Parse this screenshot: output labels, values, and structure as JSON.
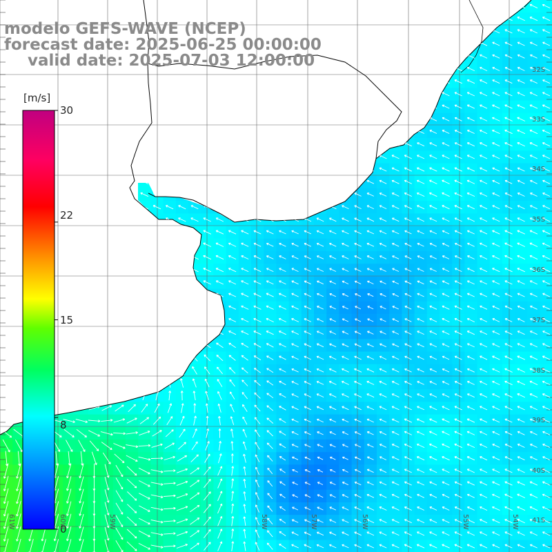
{
  "title": {
    "line1": "modelo GEFS-WAVE (NCEP)",
    "line2": "forecast date: 2025-06-25 00:00:00",
    "line3": "valid date: 2025-07-03 12:00:00"
  },
  "colorbar": {
    "unit": "[m/s]",
    "ticks": [
      "30",
      "22",
      "15",
      "8",
      "0"
    ],
    "tick_values": [
      30,
      22,
      15,
      8,
      0
    ],
    "range": [
      0,
      30
    ],
    "colors": [
      "#0000ff",
      "#00a0ff",
      "#00ffff",
      "#00ff40",
      "#a0ff00",
      "#ffff00",
      "#ff8000",
      "#ff0000",
      "#ff0080",
      "#c00080"
    ]
  },
  "lat_labels": [
    "32S",
    "33S",
    "34S",
    "35S",
    "36S",
    "37S",
    "38S",
    "39S",
    "40S",
    "41S"
  ],
  "lon_labels": [
    "61W",
    "60W",
    "59W",
    "58W",
    "57W",
    "56W",
    "55W",
    "54W"
  ],
  "chart_data": {
    "type": "heatmap",
    "variable": "wind speed",
    "unit": "m/s",
    "vmin": 0,
    "vmax": 30,
    "region": "Rio de la Plata / Uruguay coast",
    "lon_range": [
      -61.3,
      -53.5
    ],
    "lat_range": [
      -41.7,
      -31.3
    ]
  }
}
